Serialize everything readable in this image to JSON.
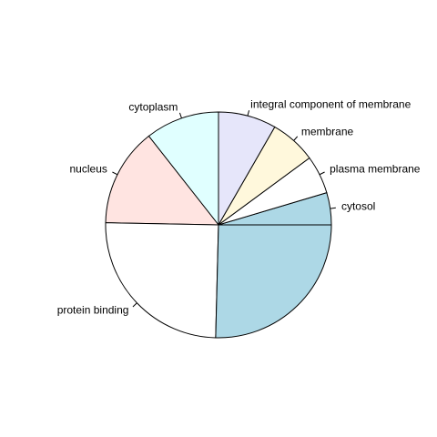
{
  "chart_data": {
    "type": "pie",
    "title": "",
    "direction": "counter-clockwise",
    "start": "3 o'clock",
    "slices": [
      {
        "label": "cytosol",
        "value": 4.6,
        "color": "#add8e6"
      },
      {
        "label": "plasma membrane",
        "value": 5.5,
        "color": "#ffffff"
      },
      {
        "label": "membrane",
        "value": 6.6,
        "color": "#fff8dc"
      },
      {
        "label": "integral component of membrane",
        "value": 8.3,
        "color": "#e6e6fa"
      },
      {
        "label": "cytoplasm",
        "value": 10.6,
        "color": "#e0ffff"
      },
      {
        "label": "nucleus",
        "value": 14.1,
        "color": "#ffe4e1"
      },
      {
        "label": "protein binding",
        "value": 24.9,
        "color": "#ffffff"
      },
      {
        "label": "",
        "value": 25.4,
        "color": "#add8e6"
      }
    ]
  }
}
